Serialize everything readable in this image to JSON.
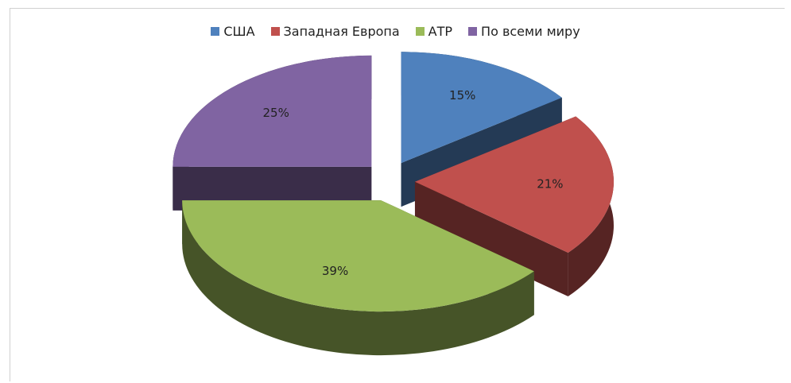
{
  "chart_data": {
    "type": "pie",
    "categories": [
      "США",
      "Западная Европа",
      "АТР",
      "По всеми миру"
    ],
    "values": [
      15,
      21,
      39,
      25
    ],
    "value_labels": [
      "15%",
      "21%",
      "39%",
      "25%"
    ],
    "colors": [
      "#4f81bd",
      "#c0504d",
      "#9bbb59",
      "#8064a2"
    ],
    "legend": "top"
  }
}
